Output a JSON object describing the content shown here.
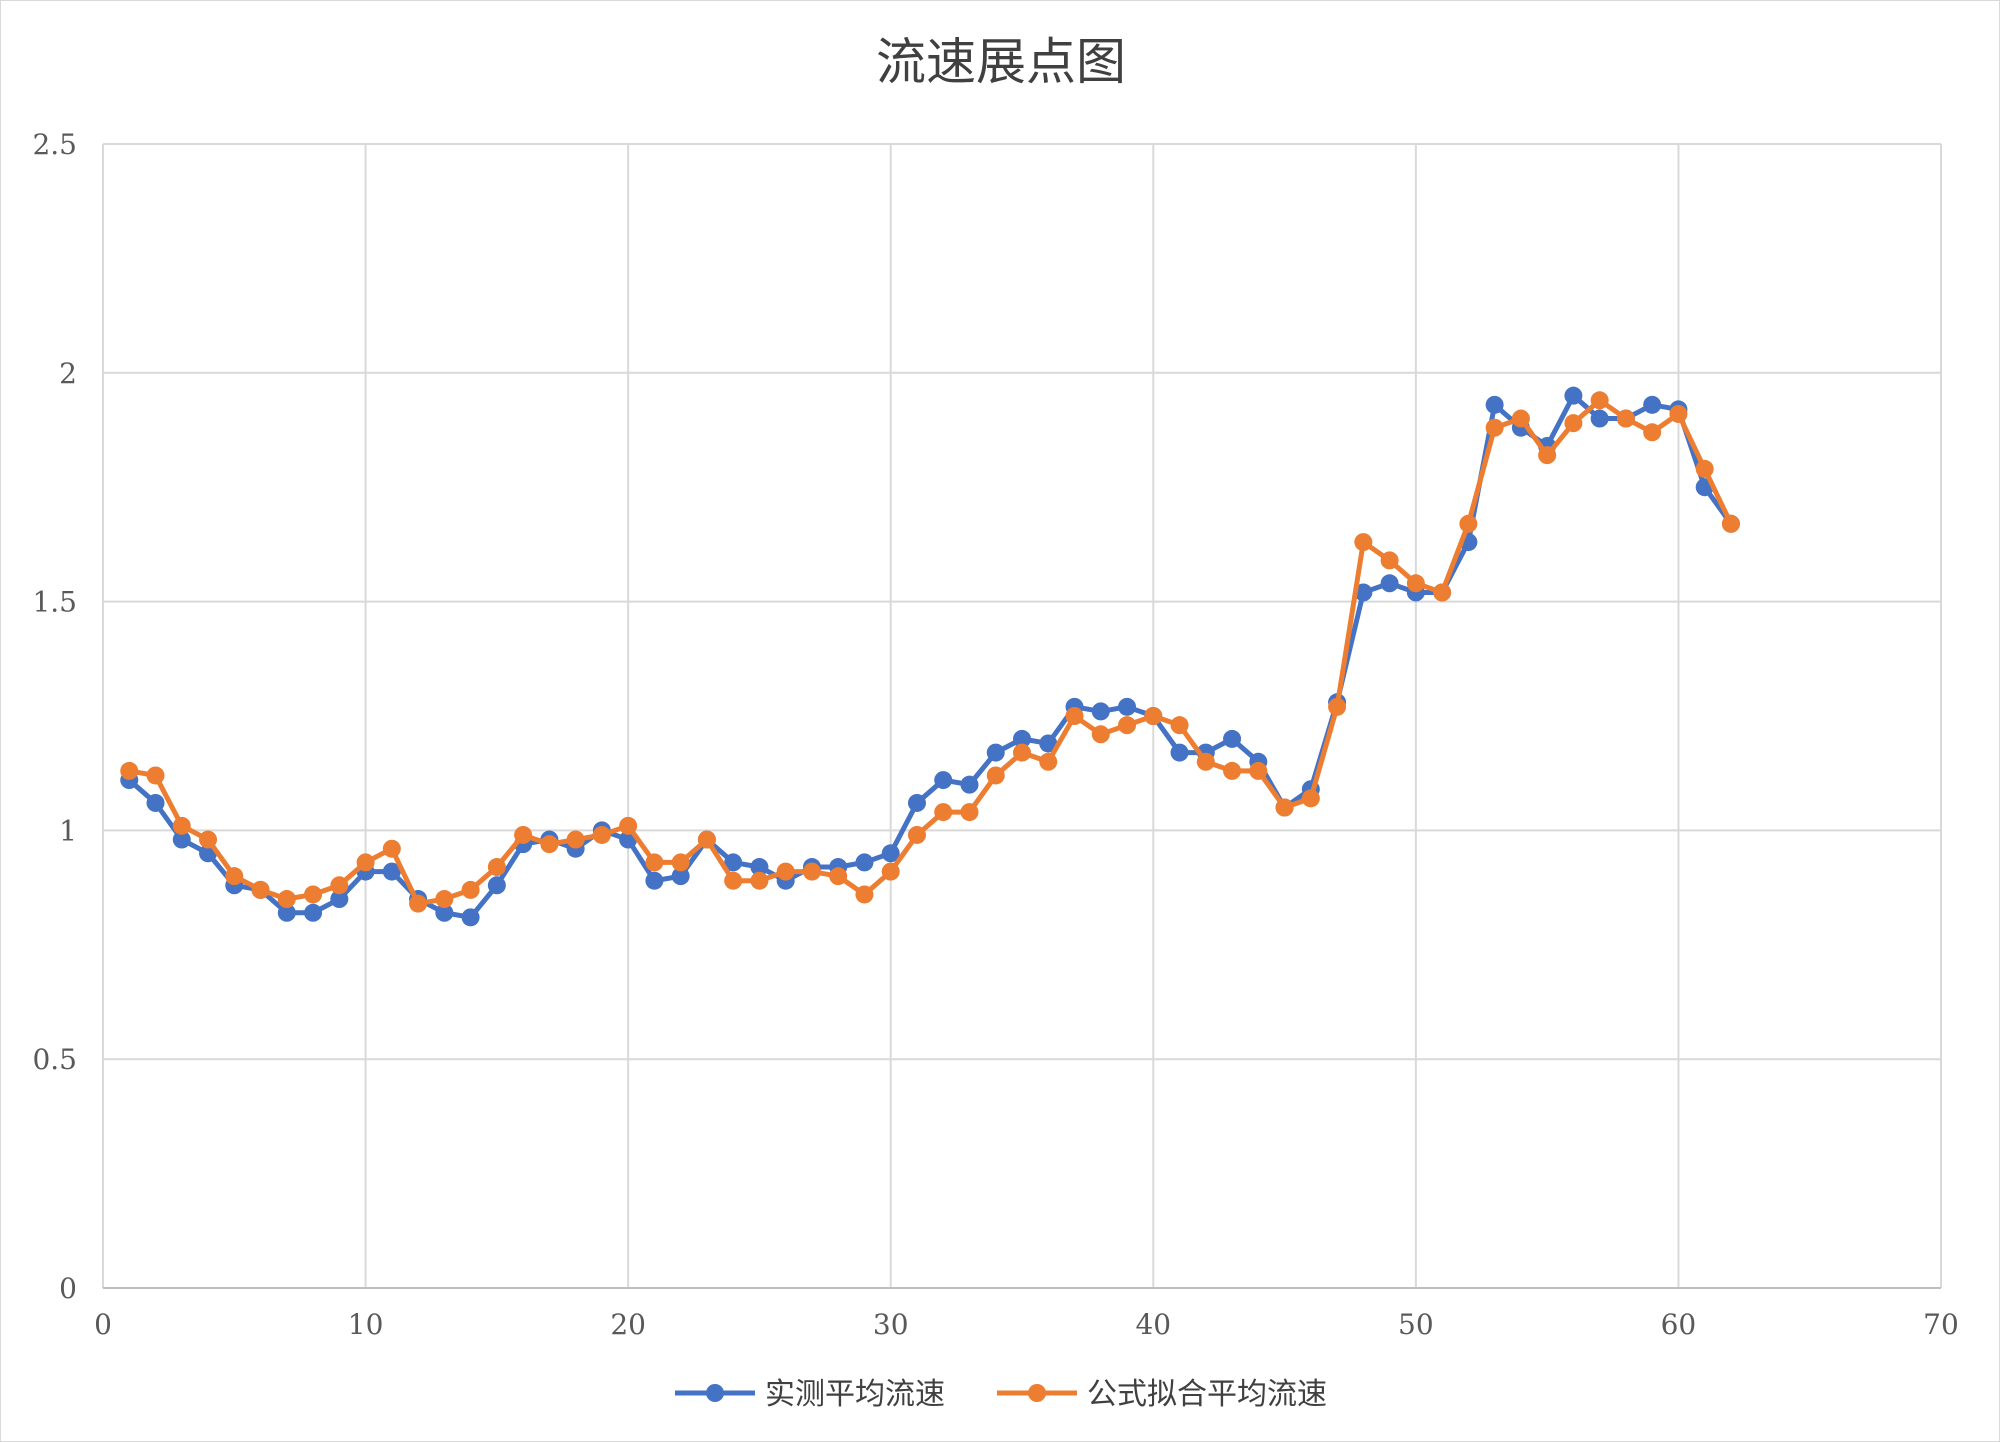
{
  "chart_data": {
    "type": "line",
    "title": "流速展点图",
    "xlabel": "",
    "ylabel": "",
    "xlim": [
      0,
      70
    ],
    "ylim": [
      0,
      2.5
    ],
    "xticks": [
      0,
      10,
      20,
      30,
      40,
      50,
      60,
      70
    ],
    "yticks": [
      0,
      0.5,
      1,
      1.5,
      2,
      2.5
    ],
    "ytick_labels": [
      "0",
      "0.5",
      "1",
      "1.5",
      "2",
      "2.5"
    ],
    "grid": true,
    "legend_position": "bottom",
    "x": [
      1,
      2,
      3,
      4,
      5,
      6,
      7,
      8,
      9,
      10,
      11,
      12,
      13,
      14,
      15,
      16,
      17,
      18,
      19,
      20,
      21,
      22,
      23,
      24,
      25,
      26,
      27,
      28,
      29,
      30,
      31,
      32,
      33,
      34,
      35,
      36,
      37,
      38,
      39,
      40,
      41,
      42,
      43,
      44,
      45,
      46,
      47,
      48,
      49,
      50,
      51,
      52,
      53,
      54,
      55,
      56,
      57,
      58,
      59,
      60,
      61,
      62
    ],
    "series": [
      {
        "name": "实测平均流速",
        "color": "#4472c4",
        "values": [
          1.11,
          1.06,
          0.98,
          0.95,
          0.88,
          0.87,
          0.82,
          0.82,
          0.85,
          0.91,
          0.91,
          0.85,
          0.82,
          0.81,
          0.88,
          0.97,
          0.98,
          0.96,
          1.0,
          0.98,
          0.89,
          0.9,
          0.98,
          0.93,
          0.92,
          0.89,
          0.92,
          0.92,
          0.93,
          0.95,
          1.06,
          1.11,
          1.1,
          1.17,
          1.2,
          1.19,
          1.27,
          1.26,
          1.27,
          1.25,
          1.17,
          1.17,
          1.2,
          1.15,
          1.05,
          1.09,
          1.28,
          1.52,
          1.54,
          1.52,
          1.52,
          1.63,
          1.93,
          1.88,
          1.84,
          1.95,
          1.9,
          1.9,
          1.93,
          1.92,
          1.75,
          1.67
        ]
      },
      {
        "name": "公式拟合平均流速",
        "color": "#ed7d31",
        "values": [
          1.13,
          1.12,
          1.01,
          0.98,
          0.9,
          0.87,
          0.85,
          0.86,
          0.88,
          0.93,
          0.96,
          0.84,
          0.85,
          0.87,
          0.92,
          0.99,
          0.97,
          0.98,
          0.99,
          1.01,
          0.93,
          0.93,
          0.98,
          0.89,
          0.89,
          0.91,
          0.91,
          0.9,
          0.86,
          0.91,
          0.99,
          1.04,
          1.04,
          1.12,
          1.17,
          1.15,
          1.25,
          1.21,
          1.23,
          1.25,
          1.23,
          1.15,
          1.13,
          1.13,
          1.05,
          1.07,
          1.27,
          1.63,
          1.59,
          1.54,
          1.52,
          1.67,
          1.88,
          1.9,
          1.82,
          1.89,
          1.94,
          1.9,
          1.87,
          1.91,
          1.79,
          1.67
        ]
      }
    ]
  }
}
